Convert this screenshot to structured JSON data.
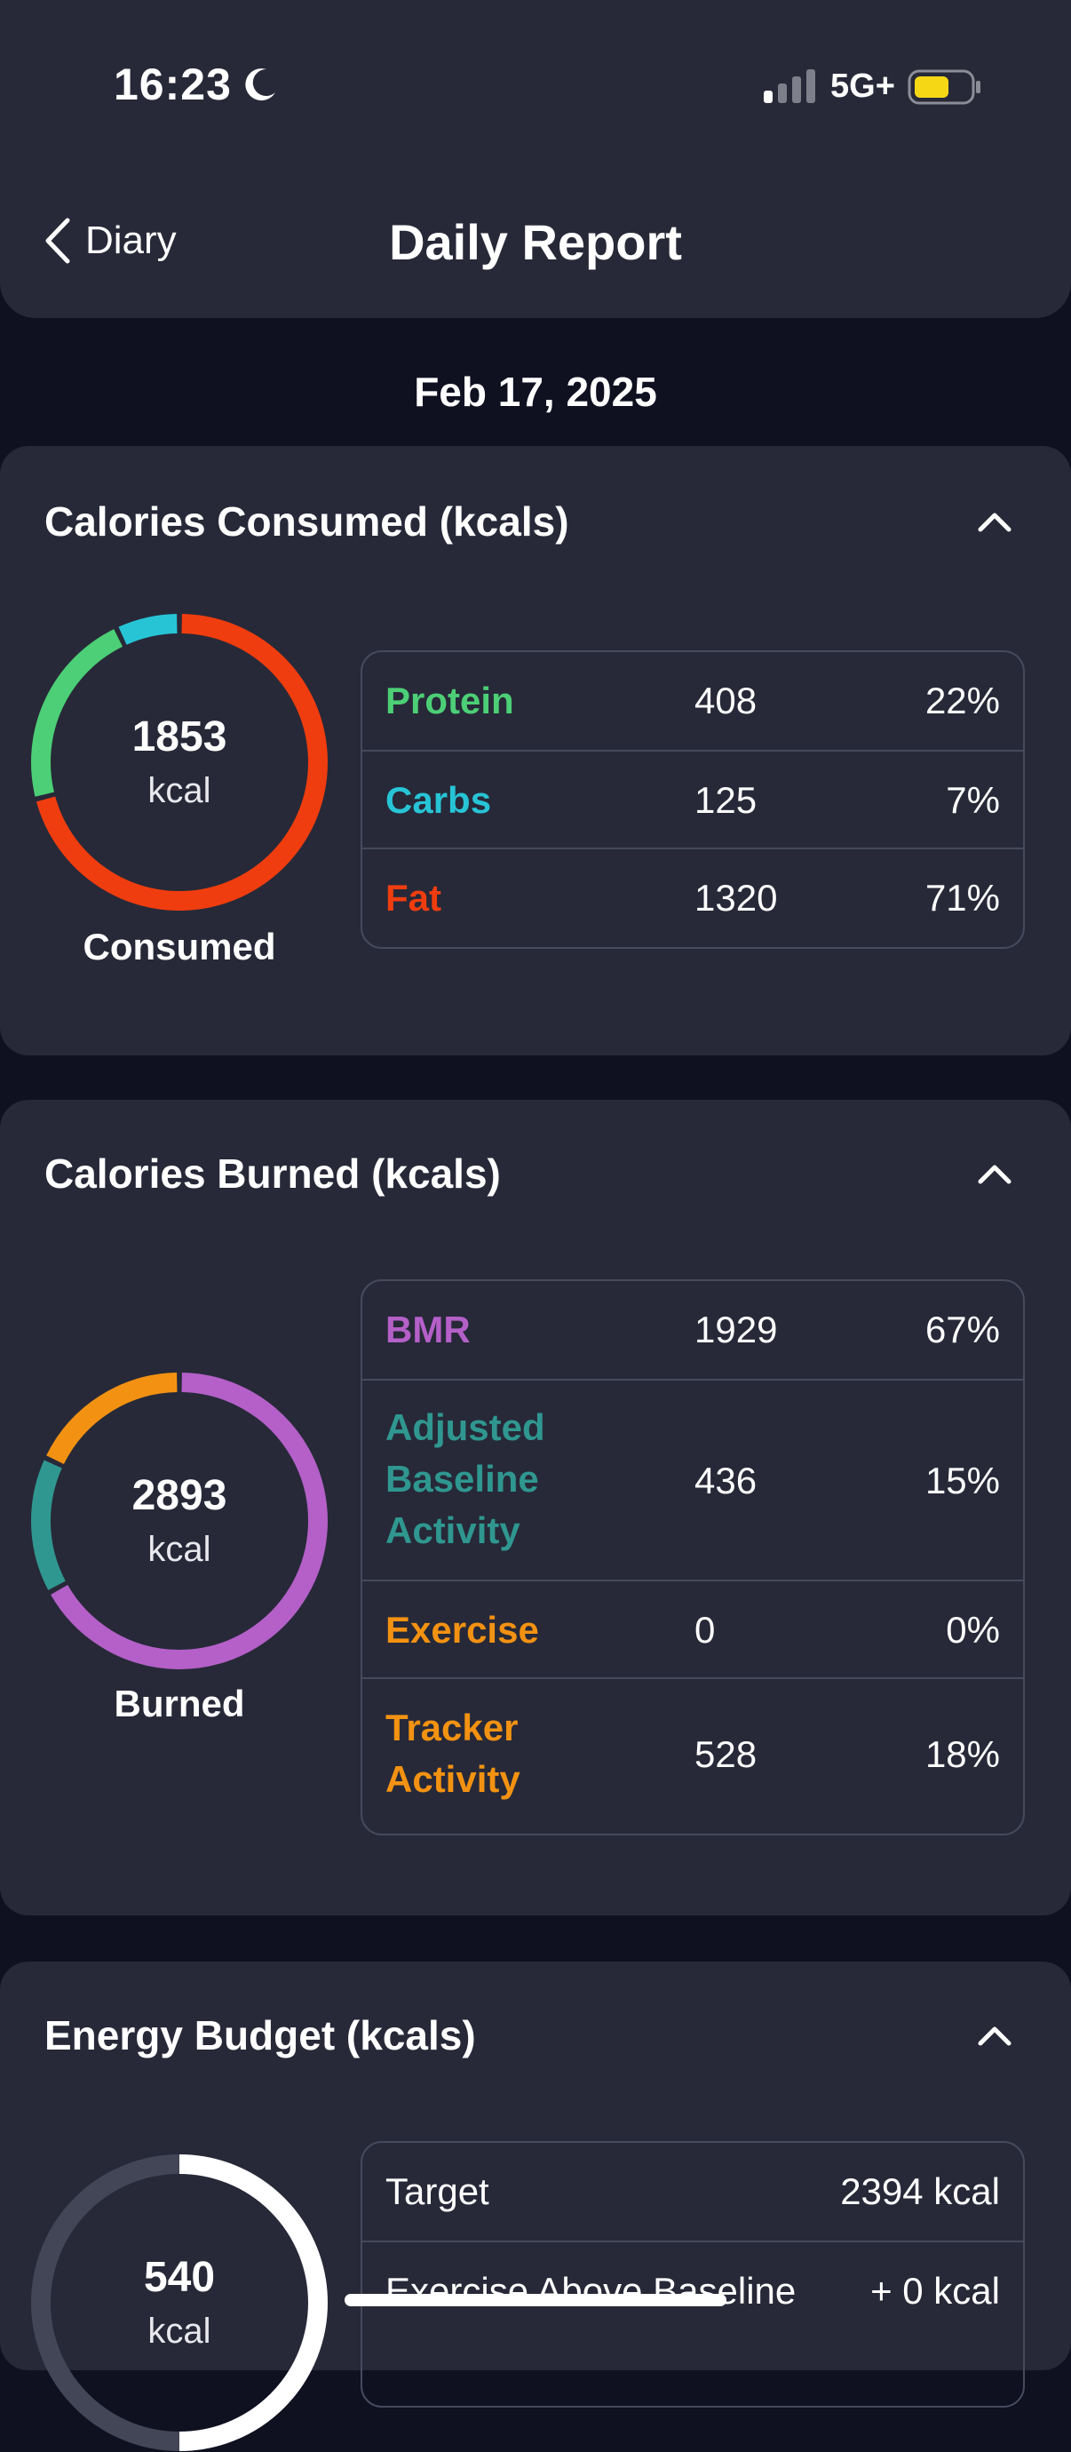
{
  "status_bar": {
    "time": "16:23",
    "network": "5G+",
    "battery_color": "#f6d716"
  },
  "nav": {
    "back_label": "Diary",
    "title": "Daily Report"
  },
  "date": "Feb 17, 2025",
  "consumed": {
    "title": "Calories Consumed (kcals)",
    "total": "1853",
    "unit": "kcal",
    "caption": "Consumed",
    "rows": [
      {
        "label": "Protein",
        "value": "408",
        "percent": "22%",
        "color": "#4ccf76",
        "fraction": 0.22
      },
      {
        "label": "Carbs",
        "value": "125",
        "percent": "7%",
        "color": "#27c4d6",
        "fraction": 0.07
      },
      {
        "label": "Fat",
        "value": "1320",
        "percent": "71%",
        "color": "#ef3d0f",
        "fraction": 0.71
      }
    ]
  },
  "burned": {
    "title": "Calories Burned (kcals)",
    "total": "2893",
    "unit": "kcal",
    "caption": "Burned",
    "rows": [
      {
        "label": "BMR",
        "value": "1929",
        "percent": "67%",
        "color": "#b460c8",
        "fraction": 0.67
      },
      {
        "label": "Adjusted Baseline Activity",
        "value": "436",
        "percent": "15%",
        "color": "#2f9790",
        "fraction": 0.15
      },
      {
        "label": "Exercise",
        "value": "0",
        "percent": "0%",
        "color": "#f39212",
        "fraction": 0.0
      },
      {
        "label": "Tracker Activity",
        "value": "528",
        "percent": "18%",
        "color": "#f39212",
        "fraction": 0.18
      }
    ]
  },
  "budget": {
    "title": "Energy Budget (kcals)",
    "total": "540",
    "unit": "kcal",
    "ring_fraction": 0.5,
    "rows": [
      {
        "label": "Target",
        "value": "2394 kcal"
      },
      {
        "label": "Exercise Above Baseline",
        "value": "+ 0 kcal"
      }
    ]
  }
}
